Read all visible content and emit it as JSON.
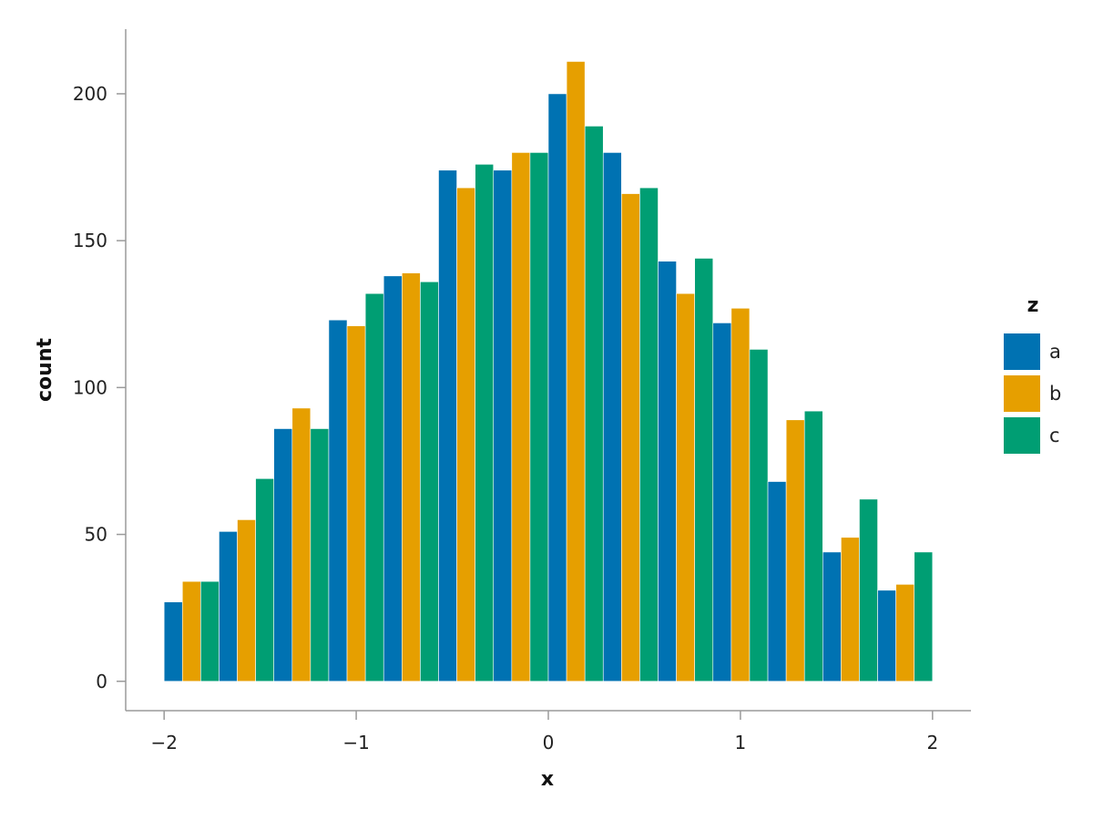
{
  "chart_data": {
    "type": "bar",
    "xlabel": "x",
    "ylabel": "count",
    "xlim": [
      -2.2,
      2.2
    ],
    "ylim": [
      -10,
      222
    ],
    "x_ticks": [
      -2,
      -1,
      0,
      1,
      2
    ],
    "x_tick_labels": [
      "−2",
      "−1",
      "0",
      "1",
      "2"
    ],
    "y_ticks": [
      0,
      50,
      100,
      150,
      200
    ],
    "y_tick_labels": [
      "0",
      "50",
      "100",
      "150",
      "200"
    ],
    "bin_edges": [
      -2.0,
      -1.7143,
      -1.4286,
      -1.1429,
      -0.8571,
      -0.5714,
      -0.2857,
      0.0,
      0.2857,
      0.5714,
      0.8571,
      1.1429,
      1.4286,
      1.7143,
      2.0
    ],
    "grid": false,
    "legend": {
      "title": "z",
      "placement": "right"
    },
    "series": [
      {
        "name": "a",
        "color": "#0072B2",
        "values": [
          27,
          51,
          86,
          123,
          138,
          174,
          174,
          200,
          180,
          143,
          122,
          68,
          44,
          31
        ]
      },
      {
        "name": "b",
        "color": "#E69F00",
        "values": [
          34,
          55,
          93,
          121,
          139,
          168,
          180,
          211,
          166,
          132,
          127,
          89,
          49,
          33
        ]
      },
      {
        "name": "c",
        "color": "#009E73",
        "values": [
          34,
          69,
          86,
          132,
          136,
          176,
          180,
          189,
          168,
          144,
          113,
          92,
          62,
          44
        ]
      }
    ]
  }
}
